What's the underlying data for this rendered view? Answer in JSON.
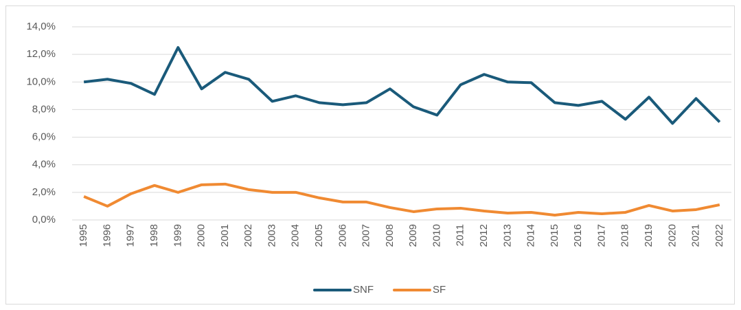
{
  "chart_data": {
    "type": "line",
    "categories": [
      "1995",
      "1996",
      "1997",
      "1998",
      "1999",
      "2000",
      "2001",
      "2002",
      "2003",
      "2004",
      "2005",
      "2006",
      "2007",
      "2008",
      "2009",
      "2010",
      "2011",
      "2012",
      "2013",
      "2014",
      "2015",
      "2016",
      "2017",
      "2018",
      "2019",
      "2020",
      "2021",
      "2022"
    ],
    "series": [
      {
        "name": "SNF",
        "color": "#1a5a7a",
        "values": [
          10.0,
          10.2,
          9.9,
          9.1,
          12.5,
          9.5,
          10.7,
          10.2,
          8.6,
          9.0,
          8.5,
          8.35,
          8.5,
          9.5,
          8.2,
          7.6,
          9.8,
          10.55,
          10.0,
          9.95,
          8.5,
          8.3,
          8.6,
          7.3,
          8.9,
          7.0,
          8.8,
          7.1
        ]
      },
      {
        "name": "SF",
        "color": "#f08a32",
        "values": [
          1.7,
          1.0,
          1.9,
          2.5,
          2.0,
          2.55,
          2.6,
          2.2,
          2.0,
          2.0,
          1.6,
          1.3,
          1.3,
          0.9,
          0.6,
          0.8,
          0.85,
          0.65,
          0.5,
          0.55,
          0.35,
          0.55,
          0.45,
          0.55,
          1.05,
          0.65,
          0.75,
          1.1
        ]
      }
    ],
    "ylim": [
      0,
      14
    ],
    "yticks": [
      {
        "value": 0,
        "label": "0,0%"
      },
      {
        "value": 2,
        "label": "2,0%"
      },
      {
        "value": 4,
        "label": "4,0%"
      },
      {
        "value": 6,
        "label": "6,0%"
      },
      {
        "value": 8,
        "label": "8,0%"
      },
      {
        "value": 10,
        "label": "10,0%"
      },
      {
        "value": 12,
        "label": "12,0%"
      },
      {
        "value": 14,
        "label": "14,0%"
      }
    ],
    "grid": true,
    "legend": "bottom"
  }
}
